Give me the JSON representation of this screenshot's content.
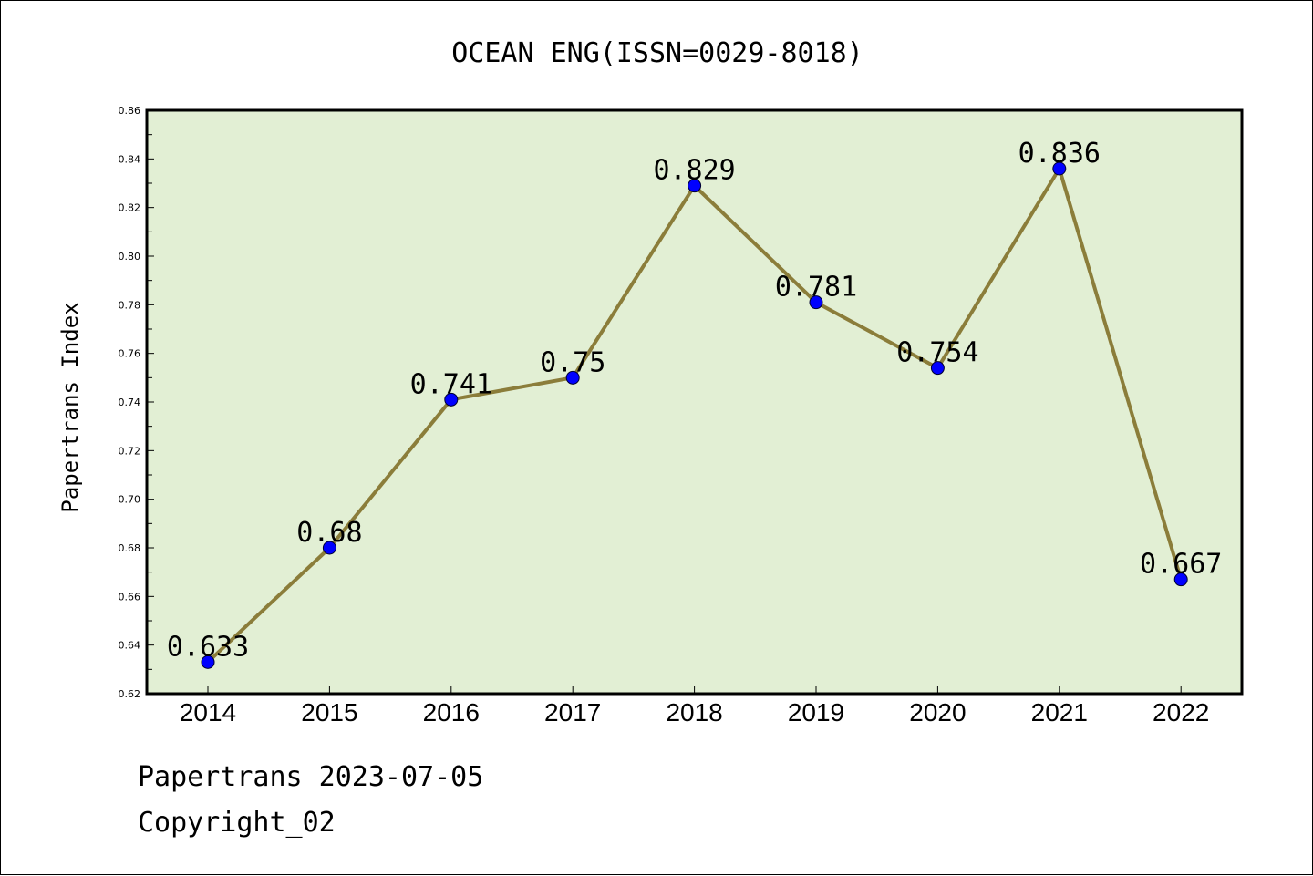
{
  "chart_data": {
    "type": "line",
    "title": "OCEAN ENG(ISSN=0029-8018)",
    "ylabel": "Papertrans Index",
    "xlabel": "",
    "categories": [
      "2014",
      "2015",
      "2016",
      "2017",
      "2018",
      "2019",
      "2020",
      "2021",
      "2022"
    ],
    "values": [
      0.633,
      0.68,
      0.741,
      0.75,
      0.829,
      0.781,
      0.754,
      0.836,
      0.667
    ],
    "data_labels": [
      "0.633",
      "0.68",
      "0.741",
      "0.75",
      "0.829",
      "0.781",
      "0.754",
      "0.836",
      "0.667"
    ],
    "ylim": [
      0.62,
      0.86
    ],
    "yticks": [
      "0.62",
      "0.64",
      "0.66",
      "0.68",
      "0.70",
      "0.72",
      "0.74",
      "0.76",
      "0.78",
      "0.80",
      "0.82",
      "0.84",
      "0.86"
    ],
    "grid": false,
    "legend": "none",
    "colors": {
      "line": "#8b7d3a",
      "marker": "#0000ff",
      "plot_background": "#e2efd4"
    }
  },
  "footer": {
    "source_date": "Papertrans 2023-07-05",
    "copyright": "Copyright_02"
  }
}
